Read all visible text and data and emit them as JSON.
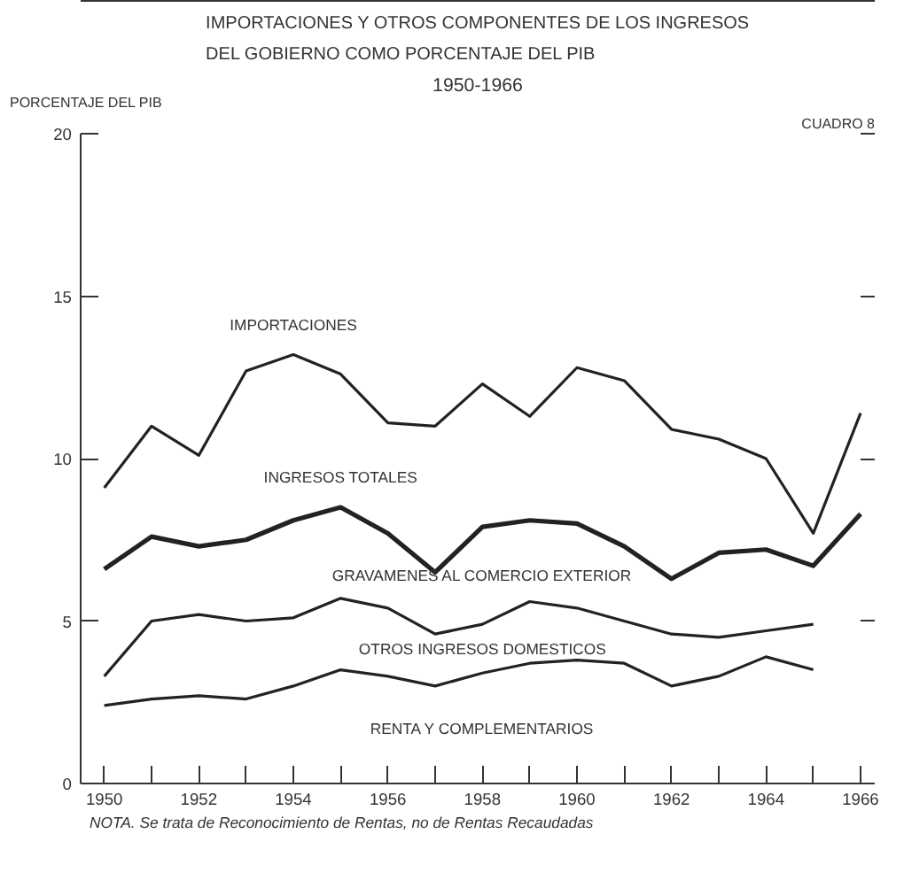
{
  "chart_data": {
    "type": "line",
    "title": "IMPORTACIONES Y OTROS COMPONENTES DE LOS INGRESOS\nDEL GOBIERNO COMO PORCENTAJE DEL PIB",
    "subtitle": "1950-1966",
    "ylabel": "PORCENTAJE DEL PIB",
    "x": [
      1950,
      1951,
      1952,
      1953,
      1954,
      1955,
      1956,
      1957,
      1958,
      1959,
      1960,
      1961,
      1962,
      1963,
      1964,
      1965,
      1966
    ],
    "series": [
      {
        "name": "IMPORTACIONES",
        "color": "#222222",
        "values": [
          9.1,
          11.0,
          10.1,
          12.7,
          13.2,
          12.6,
          11.1,
          11.0,
          12.3,
          11.3,
          12.8,
          12.4,
          10.9,
          10.6,
          10.0,
          7.7,
          11.4
        ]
      },
      {
        "name": "INGRESOS TOTALES",
        "color": "#222222",
        "values": [
          6.6,
          7.6,
          7.3,
          7.5,
          8.1,
          8.5,
          7.7,
          6.5,
          7.9,
          8.1,
          8.0,
          7.3,
          6.3,
          7.1,
          7.2,
          6.7,
          8.3
        ]
      },
      {
        "color": "#222222",
        "values": [
          3.3,
          5.0,
          5.2,
          5.0,
          5.1,
          5.7,
          5.4,
          4.6,
          4.9,
          5.6,
          5.4,
          5.0,
          4.6,
          4.5,
          4.7,
          4.9,
          null
        ]
      },
      {
        "color": "#222222",
        "values": [
          2.4,
          2.6,
          2.7,
          2.6,
          3.0,
          3.5,
          3.3,
          3.0,
          3.4,
          3.7,
          3.8,
          3.7,
          3.0,
          3.3,
          3.9,
          3.5,
          null
        ]
      }
    ],
    "xlim": [
      1949.5,
      1966.3
    ],
    "ylim": [
      0,
      20
    ],
    "xticks": [
      1950,
      {
        "value": 1951,
        "label": null
      },
      1952,
      {
        "value": 1953,
        "label": null
      },
      1954,
      {
        "value": 1955,
        "label": null
      },
      1956,
      {
        "value": 1957,
        "label": null
      },
      1958,
      {
        "value": 1959,
        "label": null
      },
      1960,
      {
        "value": 1961,
        "label": null
      },
      1962,
      {
        "value": 1963,
        "label": null
      },
      1964,
      {
        "value": 1965,
        "label": null
      },
      1966
    ],
    "yticks": [
      0,
      5,
      10,
      15,
      20
    ],
    "annotations": [
      "CUADRO 8",
      "NOTA. Se trata de Reconocimiento de Rentas, no de Rentas Recaudadas",
      "GRAVAMENES AL COMERCIO EXTERIOR",
      "OTROS INGRESOS DOMESTICOS",
      "RENTA Y COMPLEMENTARIOS"
    ],
    "grid": false
  }
}
